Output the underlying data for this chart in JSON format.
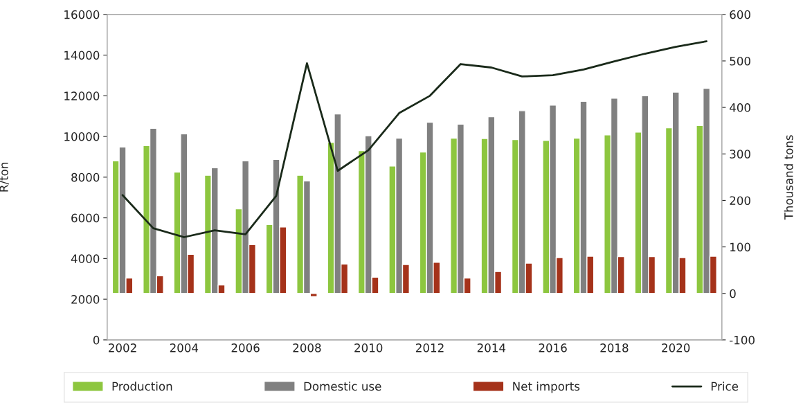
{
  "chart_data": {
    "type": "bar",
    "categories": [
      "2002",
      null,
      "2004",
      null,
      "2006",
      null,
      "2008",
      null,
      "2010",
      null,
      "2012",
      null,
      "2014",
      null,
      "2016",
      null,
      "2018",
      null,
      "2020",
      null
    ],
    "series": [
      {
        "name": "Production",
        "color": "#8dc63f",
        "axis": "y2",
        "values": [
          285,
          318,
          261,
          254,
          182,
          148,
          254,
          325,
          307,
          274,
          304,
          334,
          333,
          331,
          329,
          334,
          341,
          347,
          356,
          361
        ]
      },
      {
        "name": "Domestic use",
        "color": "#808080",
        "axis": "y2",
        "values": [
          315,
          355,
          343,
          270,
          285,
          288,
          242,
          386,
          339,
          334,
          368,
          364,
          380,
          393,
          405,
          413,
          420,
          425,
          433,
          441
        ]
      },
      {
        "name": "Net imports",
        "color": "#a5321a",
        "axis": "y2",
        "values": [
          33,
          38,
          84,
          18,
          105,
          143,
          -7,
          63,
          35,
          62,
          67,
          33,
          47,
          65,
          77,
          80,
          79,
          79,
          77,
          80
        ]
      },
      {
        "name": "Price",
        "type": "line",
        "color": "#1a2a1a",
        "values": [
          7120,
          5490,
          5050,
          5390,
          5190,
          7080,
          13600,
          8310,
          9330,
          11150,
          12000,
          13560,
          13390,
          12950,
          13010,
          13290,
          13690,
          14070,
          14410,
          14680
        ]
      }
    ],
    "ylabel": "R/ton",
    "y2label": "Thousand tons",
    "ylim": [
      0,
      16000
    ],
    "yticks": [
      0,
      2000,
      4000,
      6000,
      8000,
      10000,
      12000,
      14000,
      16000
    ],
    "y2lim": [
      -100,
      600
    ],
    "y2ticks": [
      -100,
      0,
      100,
      200,
      300,
      400,
      500,
      600
    ],
    "legend": "bottom",
    "grid": false,
    "marker": "none",
    "line_style": "solid"
  }
}
